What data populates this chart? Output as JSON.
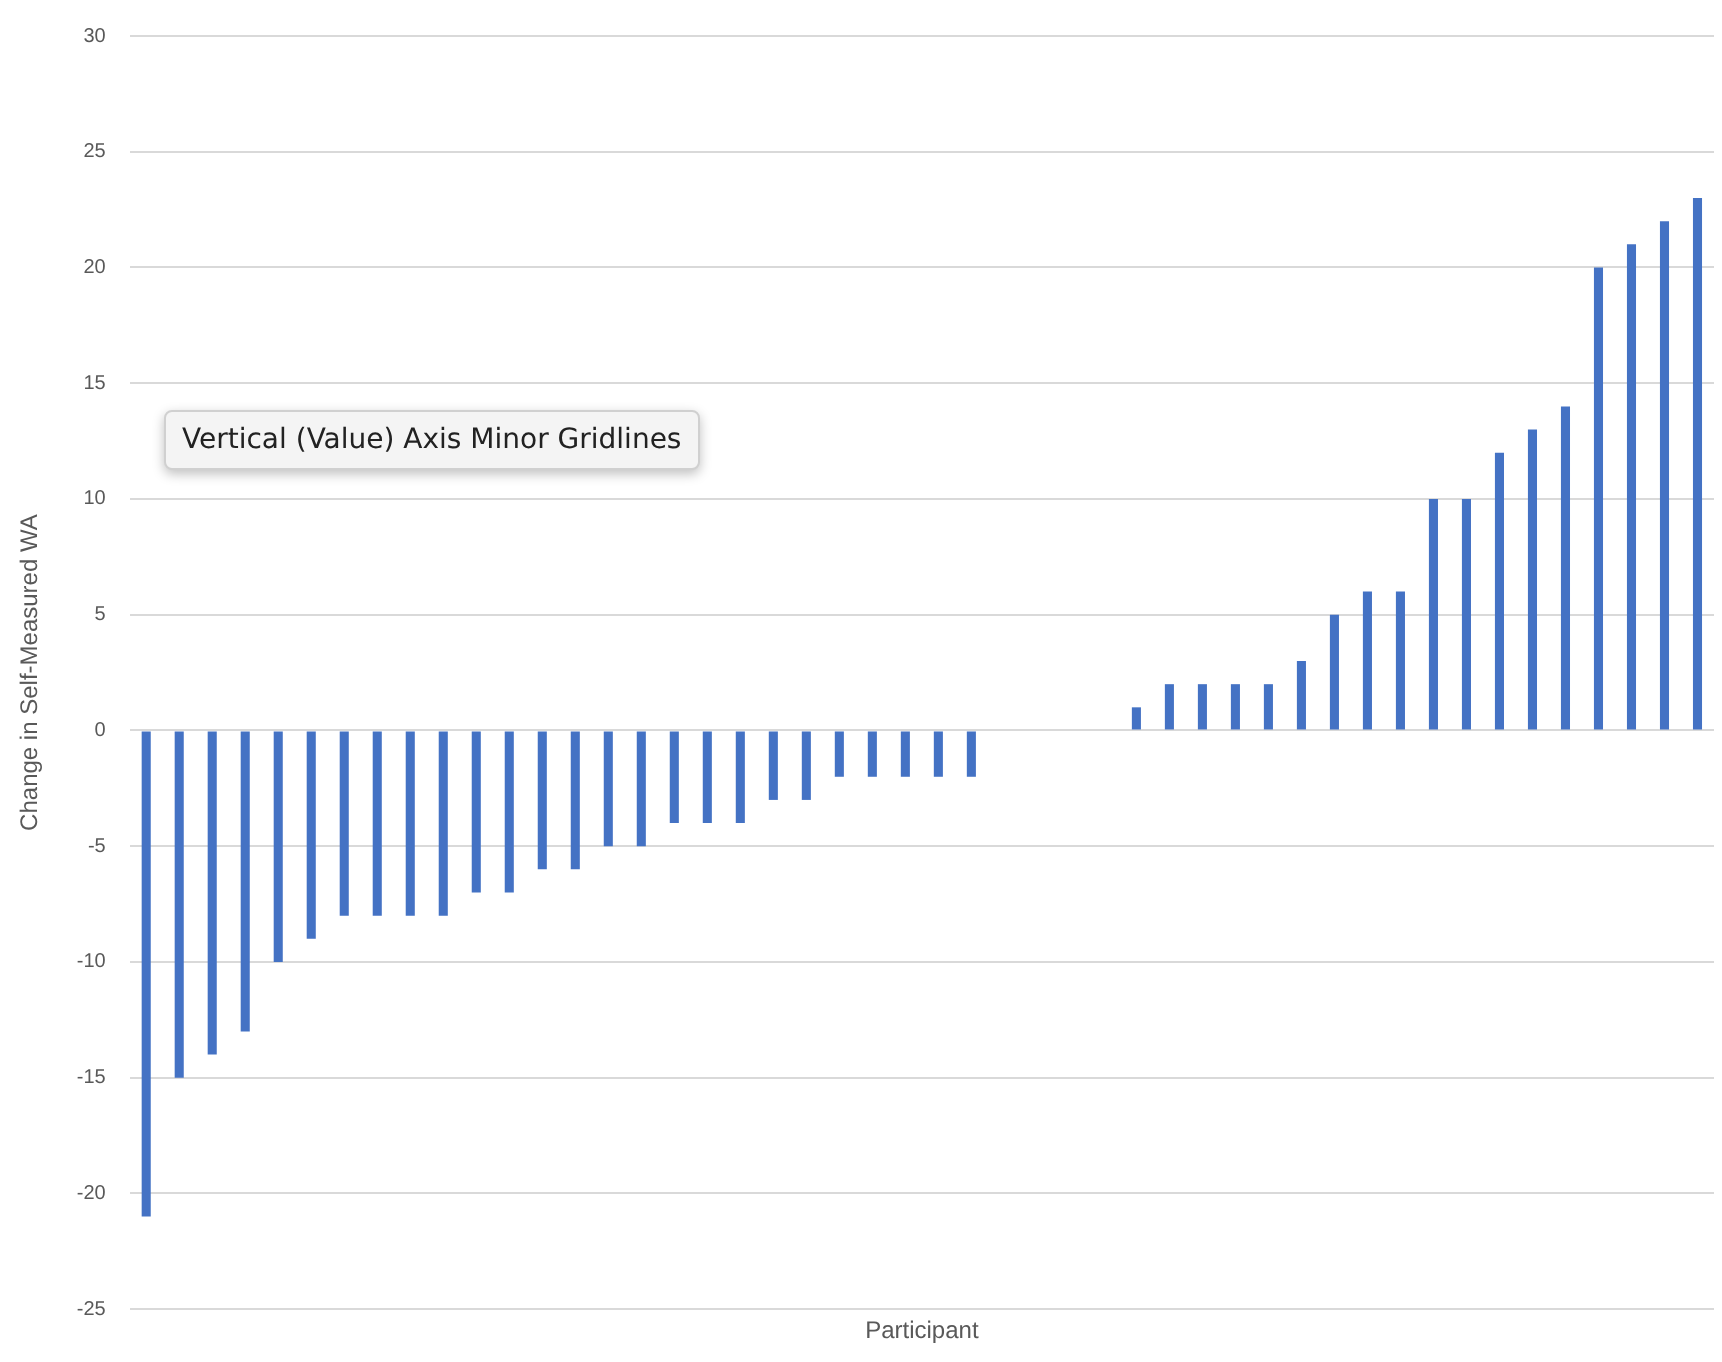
{
  "chart_data": {
    "type": "bar",
    "xlabel": "Participant",
    "ylabel": "Change in Self-Measured WA",
    "categories": [
      null,
      null,
      null,
      null,
      null,
      null,
      null,
      null,
      null,
      null,
      null,
      null,
      null,
      null,
      null,
      null,
      null,
      null,
      null,
      null,
      null,
      null,
      null,
      null,
      null,
      null,
      null,
      null,
      null,
      null,
      null,
      null,
      null,
      null,
      null,
      null,
      null,
      null,
      null,
      null,
      null,
      null,
      null,
      null,
      null,
      null,
      null,
      null
    ],
    "values": [
      -21,
      -15,
      -14,
      -13,
      -10,
      -9,
      -8,
      -8,
      -8,
      -8,
      -7,
      -7,
      -6,
      -6,
      -5,
      -5,
      -4,
      -4,
      -4,
      -3,
      -3,
      -2,
      -2,
      -2,
      -2,
      -2,
      0,
      0,
      0,
      0,
      1,
      2,
      2,
      2,
      2,
      3,
      5,
      6,
      6,
      10,
      10,
      12,
      13,
      14,
      20,
      21,
      22,
      23
    ],
    "color": "#4472c4",
    "ylim": [
      -25,
      30
    ],
    "yticks": [
      -25,
      -20,
      -15,
      -10,
      -5,
      0,
      5,
      10,
      15,
      20,
      25,
      30
    ],
    "grid": "y",
    "legend": false,
    "annotations": [
      "Vertical (Value) Axis Minor Gridlines"
    ]
  }
}
